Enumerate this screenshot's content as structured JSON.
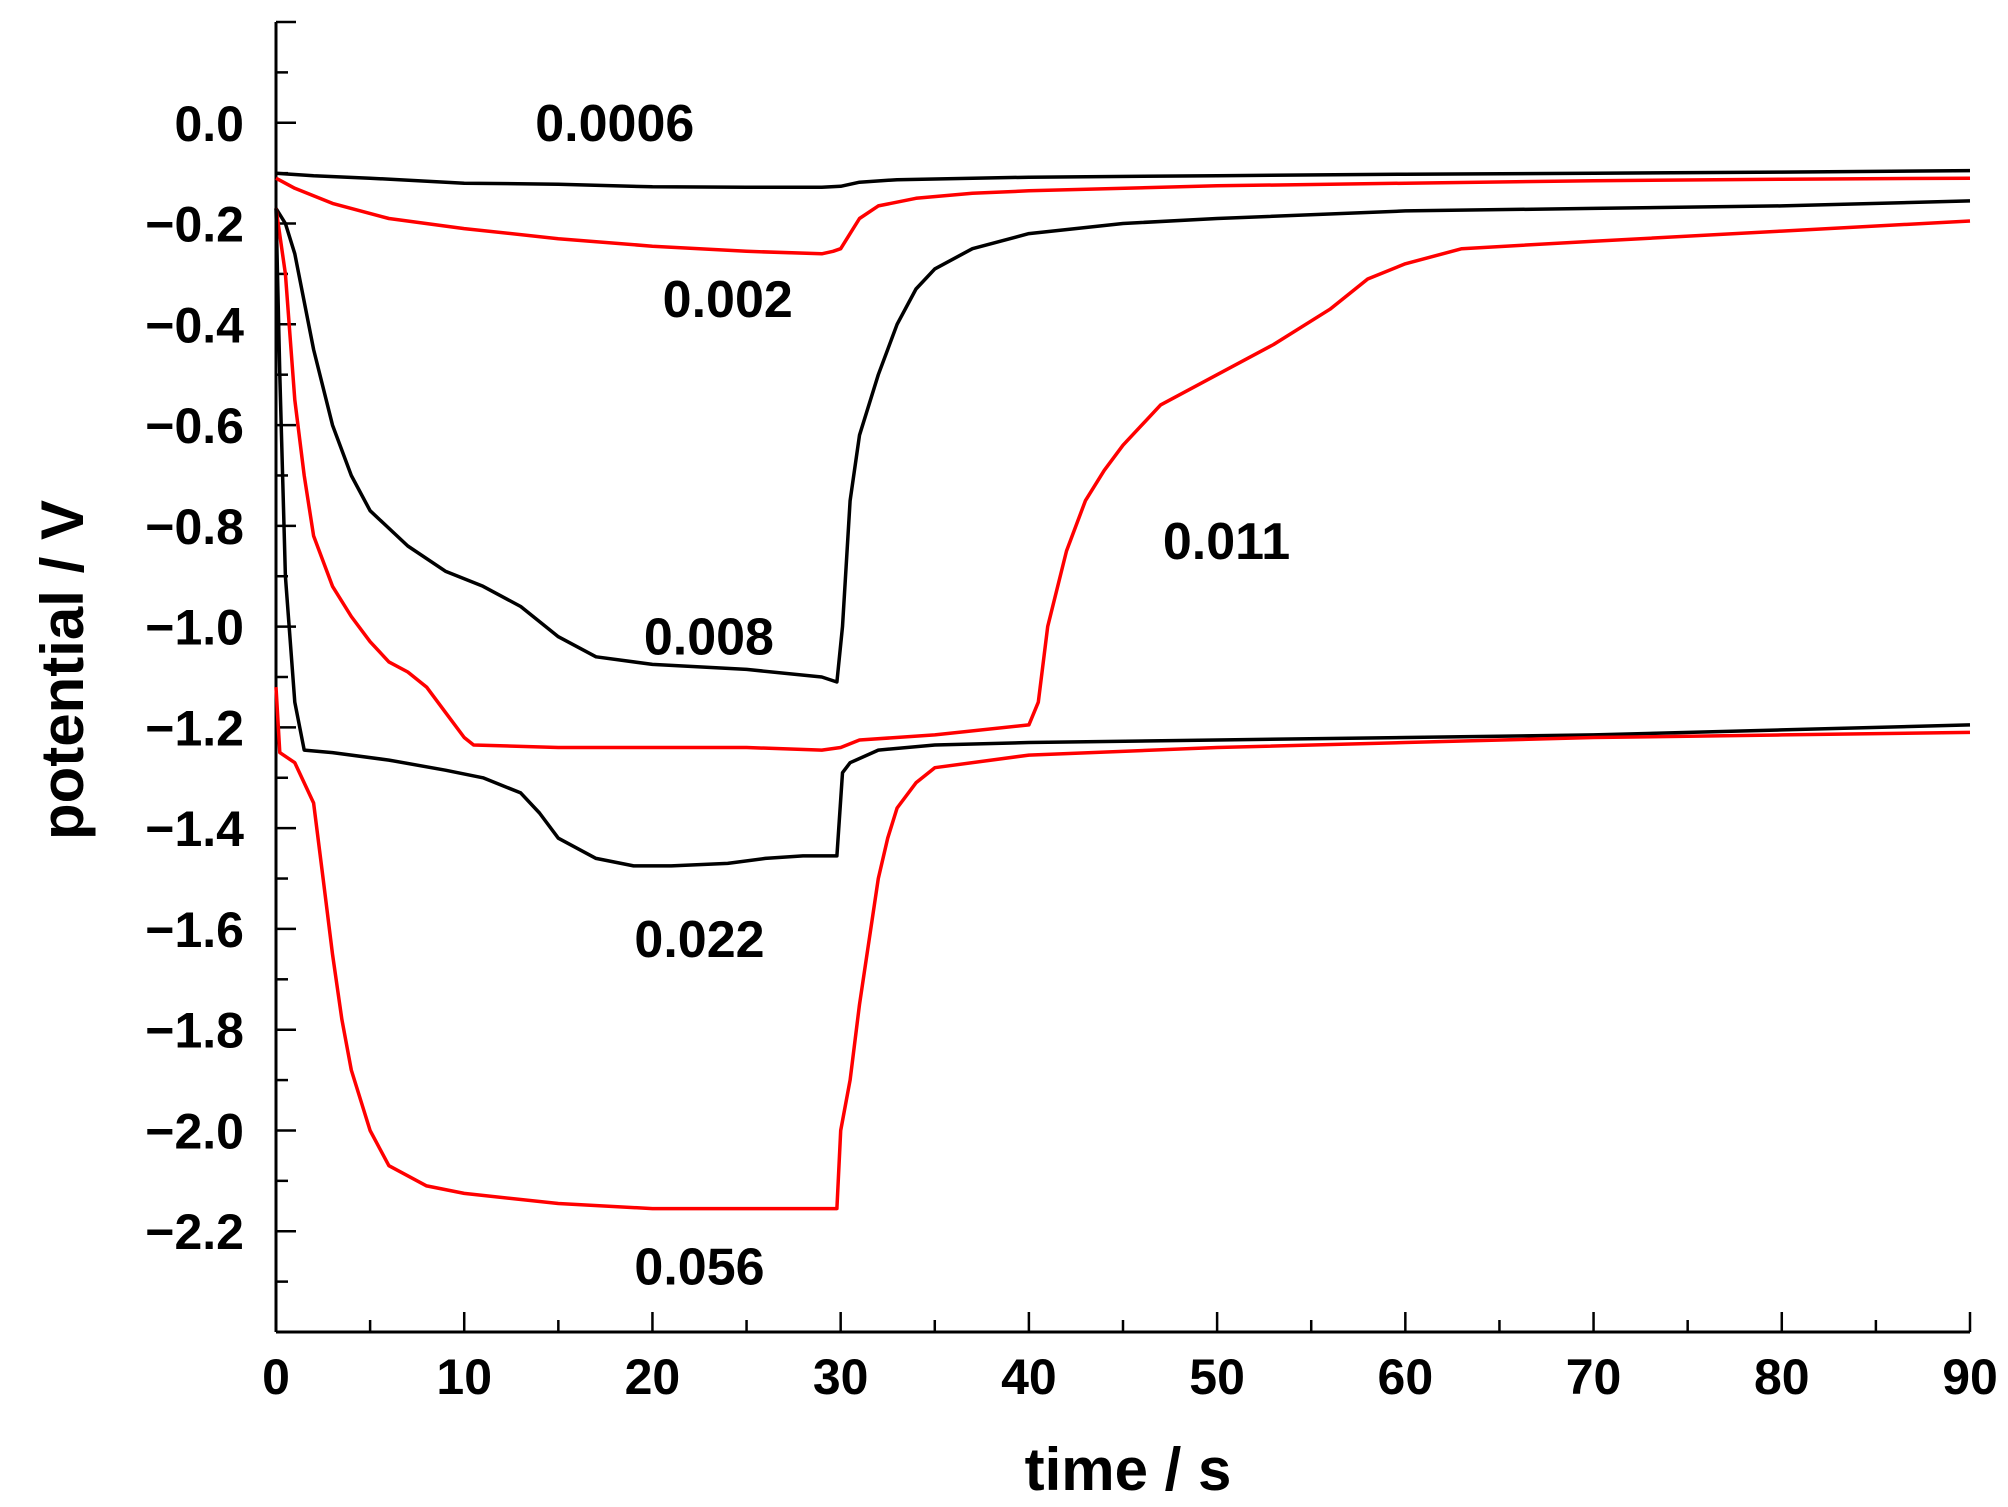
{
  "chart_data": {
    "type": "line",
    "title": "",
    "xlabel": "time / s",
    "ylabel": "potential / V",
    "xlim": [
      0,
      90
    ],
    "ylim": [
      -2.4,
      0.2
    ],
    "grid": false,
    "x_ticks": [
      0,
      10,
      20,
      30,
      40,
      50,
      60,
      70,
      80,
      90
    ],
    "x_tick_labels": [
      "0",
      "10",
      "20",
      "30",
      "40",
      "50",
      "60",
      "70",
      "80",
      "90"
    ],
    "y_ticks": [
      0.0,
      -0.2,
      -0.4,
      -0.6,
      -0.8,
      -1.0,
      -1.2,
      -1.4,
      -1.6,
      -1.8,
      -2.0,
      -2.2
    ],
    "y_tick_labels": [
      "0.0",
      "−0.2",
      "−0.4",
      "−0.6",
      "−0.8",
      "−1.0",
      "−1.2",
      "−1.4",
      "−1.6",
      "−1.8",
      "−2.0",
      "−2.2"
    ],
    "series": [
      {
        "name": "0.0006",
        "color": "#000000",
        "label_at": [
          18,
          0.0
        ],
        "points": [
          [
            0,
            -0.1
          ],
          [
            2,
            -0.105
          ],
          [
            5,
            -0.11
          ],
          [
            10,
            -0.12
          ],
          [
            15,
            -0.122
          ],
          [
            20,
            -0.127
          ],
          [
            25,
            -0.128
          ],
          [
            29,
            -0.128
          ],
          [
            30,
            -0.126
          ],
          [
            31,
            -0.118
          ],
          [
            33,
            -0.113
          ],
          [
            40,
            -0.108
          ],
          [
            50,
            -0.105
          ],
          [
            60,
            -0.102
          ],
          [
            70,
            -0.1
          ],
          [
            80,
            -0.098
          ],
          [
            90,
            -0.095
          ]
        ]
      },
      {
        "name": "0.002",
        "color": "#ff0000",
        "label_at": [
          24,
          -0.35
        ],
        "points": [
          [
            0,
            -0.11
          ],
          [
            1,
            -0.13
          ],
          [
            3,
            -0.16
          ],
          [
            6,
            -0.19
          ],
          [
            10,
            -0.21
          ],
          [
            15,
            -0.23
          ],
          [
            20,
            -0.245
          ],
          [
            25,
            -0.255
          ],
          [
            29,
            -0.26
          ],
          [
            29.6,
            -0.255
          ],
          [
            30,
            -0.25
          ],
          [
            30.5,
            -0.22
          ],
          [
            31,
            -0.19
          ],
          [
            32,
            -0.165
          ],
          [
            34,
            -0.15
          ],
          [
            37,
            -0.14
          ],
          [
            40,
            -0.135
          ],
          [
            50,
            -0.125
          ],
          [
            60,
            -0.12
          ],
          [
            70,
            -0.115
          ],
          [
            80,
            -0.112
          ],
          [
            90,
            -0.11
          ]
        ]
      },
      {
        "name": "0.008",
        "color": "#000000",
        "label_at": [
          23,
          -1.02
        ],
        "points": [
          [
            0,
            -0.17
          ],
          [
            0.5,
            -0.2
          ],
          [
            1,
            -0.26
          ],
          [
            2,
            -0.45
          ],
          [
            3,
            -0.6
          ],
          [
            4,
            -0.7
          ],
          [
            5,
            -0.77
          ],
          [
            7,
            -0.84
          ],
          [
            9,
            -0.89
          ],
          [
            11,
            -0.92
          ],
          [
            13,
            -0.96
          ],
          [
            15,
            -1.02
          ],
          [
            17,
            -1.06
          ],
          [
            20,
            -1.075
          ],
          [
            25,
            -1.085
          ],
          [
            29,
            -1.1
          ],
          [
            29.8,
            -1.11
          ],
          [
            30.1,
            -1.0
          ],
          [
            30.5,
            -0.75
          ],
          [
            31,
            -0.62
          ],
          [
            32,
            -0.5
          ],
          [
            33,
            -0.4
          ],
          [
            34,
            -0.33
          ],
          [
            35,
            -0.29
          ],
          [
            37,
            -0.25
          ],
          [
            40,
            -0.22
          ],
          [
            45,
            -0.2
          ],
          [
            50,
            -0.19
          ],
          [
            60,
            -0.175
          ],
          [
            70,
            -0.17
          ],
          [
            80,
            -0.165
          ],
          [
            90,
            -0.155
          ]
        ]
      },
      {
        "name": "0.011",
        "color": "#ff0000",
        "label_at": [
          50.5,
          -0.83
        ],
        "points": [
          [
            0,
            -0.17
          ],
          [
            0.5,
            -0.3
          ],
          [
            1,
            -0.55
          ],
          [
            1.5,
            -0.7
          ],
          [
            2,
            -0.82
          ],
          [
            3,
            -0.92
          ],
          [
            4,
            -0.98
          ],
          [
            5,
            -1.03
          ],
          [
            6,
            -1.07
          ],
          [
            7,
            -1.09
          ],
          [
            8,
            -1.12
          ],
          [
            9,
            -1.17
          ],
          [
            10,
            -1.22
          ],
          [
            10.5,
            -1.235
          ],
          [
            15,
            -1.24
          ],
          [
            20,
            -1.24
          ],
          [
            25,
            -1.24
          ],
          [
            29,
            -1.245
          ],
          [
            30,
            -1.24
          ],
          [
            31,
            -1.225
          ],
          [
            35,
            -1.215
          ],
          [
            40,
            -1.195
          ],
          [
            40.5,
            -1.15
          ],
          [
            41,
            -1.0
          ],
          [
            42,
            -0.85
          ],
          [
            43,
            -0.75
          ],
          [
            44,
            -0.69
          ],
          [
            45,
            -0.64
          ],
          [
            47,
            -0.56
          ],
          [
            50,
            -0.5
          ],
          [
            53,
            -0.44
          ],
          [
            56,
            -0.37
          ],
          [
            58,
            -0.31
          ],
          [
            60,
            -0.28
          ],
          [
            63,
            -0.25
          ],
          [
            70,
            -0.235
          ],
          [
            80,
            -0.215
          ],
          [
            90,
            -0.195
          ]
        ]
      },
      {
        "name": "0.022",
        "color": "#000000",
        "label_at": [
          22.5,
          -1.62
        ],
        "points": [
          [
            0,
            -0.17
          ],
          [
            0.2,
            -0.5
          ],
          [
            0.5,
            -0.9
          ],
          [
            1,
            -1.15
          ],
          [
            1.5,
            -1.245
          ],
          [
            3,
            -1.25
          ],
          [
            6,
            -1.265
          ],
          [
            9,
            -1.285
          ],
          [
            11,
            -1.3
          ],
          [
            13,
            -1.33
          ],
          [
            14,
            -1.37
          ],
          [
            15,
            -1.42
          ],
          [
            17,
            -1.46
          ],
          [
            19,
            -1.475
          ],
          [
            21,
            -1.475
          ],
          [
            24,
            -1.47
          ],
          [
            26,
            -1.46
          ],
          [
            28,
            -1.455
          ],
          [
            29.8,
            -1.455
          ],
          [
            30.1,
            -1.29
          ],
          [
            30.5,
            -1.27
          ],
          [
            32,
            -1.245
          ],
          [
            35,
            -1.235
          ],
          [
            40,
            -1.23
          ],
          [
            50,
            -1.225
          ],
          [
            60,
            -1.22
          ],
          [
            70,
            -1.215
          ],
          [
            80,
            -1.205
          ],
          [
            90,
            -1.195
          ]
        ]
      },
      {
        "name": "0.056",
        "color": "#ff0000",
        "label_at": [
          22.5,
          -2.27
        ],
        "points": [
          [
            0,
            -1.12
          ],
          [
            0.2,
            -1.25
          ],
          [
            1,
            -1.27
          ],
          [
            2,
            -1.35
          ],
          [
            2.5,
            -1.5
          ],
          [
            3,
            -1.65
          ],
          [
            3.5,
            -1.78
          ],
          [
            4,
            -1.88
          ],
          [
            5,
            -2.0
          ],
          [
            6,
            -2.07
          ],
          [
            8,
            -2.11
          ],
          [
            10,
            -2.125
          ],
          [
            15,
            -2.145
          ],
          [
            20,
            -2.155
          ],
          [
            25,
            -2.155
          ],
          [
            29.8,
            -2.155
          ],
          [
            30,
            -2.0
          ],
          [
            30.5,
            -1.9
          ],
          [
            31,
            -1.75
          ],
          [
            32,
            -1.5
          ],
          [
            32.5,
            -1.42
          ],
          [
            33,
            -1.36
          ],
          [
            34,
            -1.31
          ],
          [
            35,
            -1.28
          ],
          [
            40,
            -1.255
          ],
          [
            50,
            -1.24
          ],
          [
            60,
            -1.23
          ],
          [
            70,
            -1.22
          ],
          [
            80,
            -1.215
          ],
          [
            90,
            -1.21
          ]
        ]
      }
    ]
  }
}
